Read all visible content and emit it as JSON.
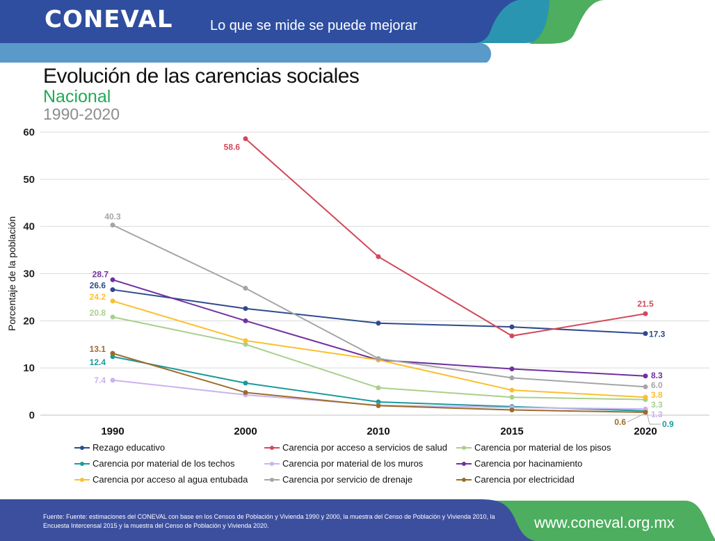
{
  "header": {
    "logo": "CONEVAL",
    "slogan": "Lo que se mide se puede mejorar"
  },
  "title": "Evolución de las carencias sociales",
  "subtitle": "Nacional",
  "period": "1990-2020",
  "colors": {
    "header_blue": "#2f4ea0",
    "light_blue": "#5a9ac8",
    "teal": "#2a95b0",
    "green": "#4cae5e"
  },
  "chart_data": {
    "type": "line",
    "categories": [
      "1990",
      "2000",
      "2010",
      "2015",
      "2020"
    ],
    "ylabel": "Porcentaje de la población",
    "ylim": [
      0,
      60
    ],
    "yticks": [
      "0",
      "10",
      "20",
      "30",
      "40",
      "50",
      "60"
    ],
    "grid": true,
    "legend_position": "bottom",
    "series": [
      {
        "name": "Rezago educativo",
        "color": "#2e4a8f",
        "values": [
          26.6,
          22.6,
          19.5,
          18.7,
          17.3
        ],
        "labels": [
          "26.6",
          null,
          null,
          null,
          "17.3"
        ]
      },
      {
        "name": "Carencia por acceso a servicios de salud",
        "color": "#d04a5a",
        "values": [
          null,
          58.6,
          33.6,
          16.8,
          21.5
        ],
        "labels": [
          null,
          "58.6",
          null,
          null,
          "21.5"
        ]
      },
      {
        "name": "Carencia por material de los pisos",
        "color": "#a8d08d",
        "values": [
          20.8,
          15.0,
          5.8,
          3.8,
          3.3
        ],
        "labels": [
          "20.8",
          null,
          null,
          null,
          "3.3"
        ]
      },
      {
        "name": "Carencia por material de los techos",
        "color": "#1a9a9a",
        "values": [
          12.4,
          6.8,
          2.8,
          1.8,
          0.9
        ],
        "labels": [
          "12.4",
          null,
          null,
          null,
          "0.9"
        ]
      },
      {
        "name": "Carencia por material de los muros",
        "color": "#c9b3f0",
        "values": [
          7.4,
          4.3,
          2.1,
          1.6,
          1.3
        ],
        "labels": [
          "7.4",
          null,
          null,
          null,
          "1.3"
        ]
      },
      {
        "name": "Carencia por hacinamiento",
        "color": "#7030a0",
        "values": [
          28.7,
          20.0,
          11.7,
          9.8,
          8.3
        ],
        "labels": [
          "28.7",
          null,
          null,
          null,
          "8.3"
        ]
      },
      {
        "name": "Carencia por acceso al agua entubada",
        "color": "#fbbf2e",
        "values": [
          24.2,
          15.8,
          11.7,
          5.3,
          3.8
        ],
        "labels": [
          "24.2",
          null,
          null,
          null,
          "3.8"
        ]
      },
      {
        "name": "Carencia por servicio de drenaje",
        "color": "#a5a5a5",
        "values": [
          40.3,
          26.9,
          12.0,
          7.9,
          6.0
        ],
        "labels": [
          "40.3",
          null,
          null,
          null,
          "6.0"
        ]
      },
      {
        "name": "Carencia por electricidad",
        "color": "#9c6b2a",
        "values": [
          13.1,
          4.8,
          2.0,
          1.1,
          0.6
        ],
        "labels": [
          "13.1",
          null,
          null,
          null,
          "0.6"
        ]
      }
    ]
  },
  "footer": {
    "source": "Fuente: Fuente: estimaciones del CONEVAL con base en los Censos de Población y Vivienda 1990 y 2000, la muestra del Censo de Población y Vivienda 2010, la Encuesta Intercensal 2015 y la muestra del Censo de Población y Vivienda 2020.",
    "url": "www.coneval.org.mx"
  }
}
